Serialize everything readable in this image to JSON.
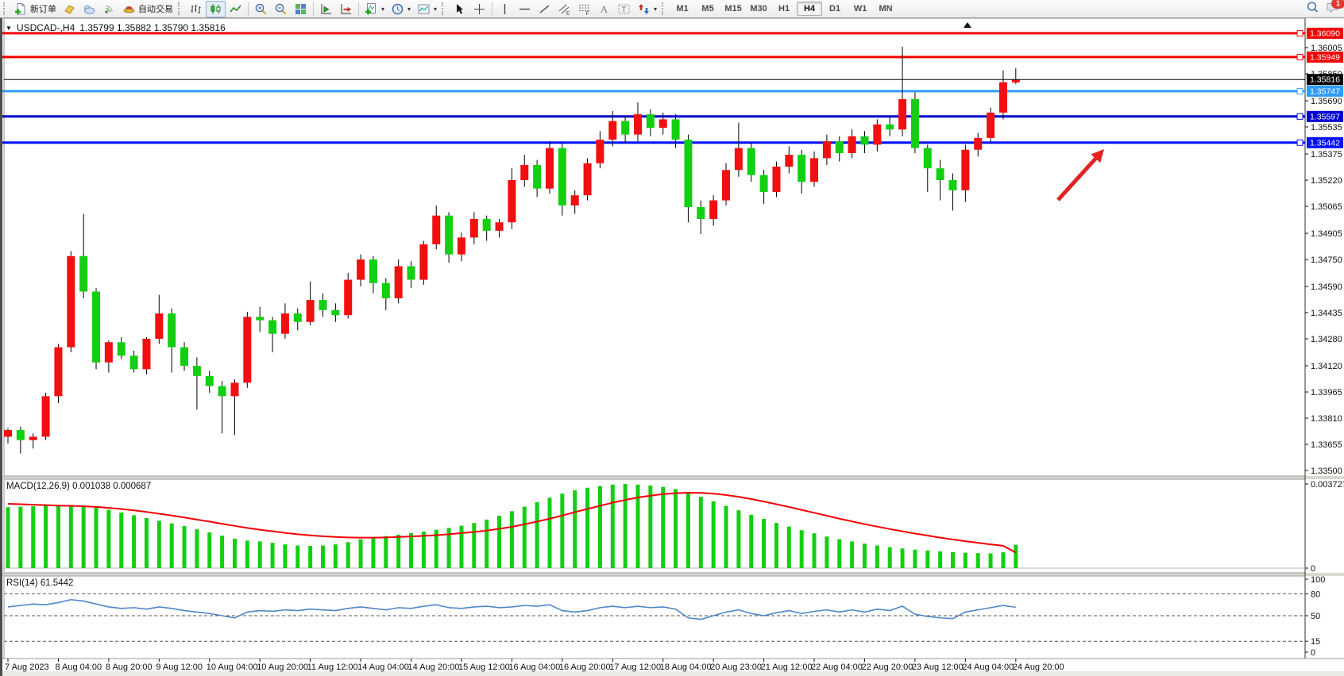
{
  "window": {
    "badge_count": "1"
  },
  "toolbar": {
    "new_order_label": "新订单",
    "auto_trading_label": "自动交易",
    "timeframes": [
      "M1",
      "M5",
      "M15",
      "M30",
      "H1",
      "H4",
      "D1",
      "W1",
      "MN"
    ],
    "active_timeframe": "H4",
    "icon_names": [
      "new-order-icon",
      "charts-icon",
      "market-icon",
      "signal-icon",
      "autotrading-icon",
      "bar-chart-icon",
      "candlestick-icon",
      "line-chart-icon",
      "zoom-in-icon",
      "zoom-out-icon",
      "tile-windows-icon",
      "auto-scroll-icon",
      "chart-shift-icon",
      "indicators-icon",
      "periods-icon",
      "templates-icon",
      "cursor-icon",
      "crosshair-icon",
      "vertical-line-icon",
      "horizontal-line-icon",
      "trendline-icon",
      "channel-icon",
      "fibonacci-icon",
      "text-icon",
      "text-label-icon",
      "arrows-icon",
      "search-icon",
      "chat-icon"
    ]
  },
  "chart": {
    "title_symbol": "USDCAD-,H4",
    "title_ohlc": "1.35799 1.35882 1.35790 1.35816",
    "macd_label": "MACD(12,26,9) 0.001038 0.000687",
    "rsi_label": "RSI(14) 61.5442",
    "price_ticks": [
      "1.36005",
      "1.35850",
      "1.35690",
      "1.35535",
      "1.35375",
      "1.35220",
      "1.35065",
      "1.34905",
      "1.34750",
      "1.34590",
      "1.34435",
      "1.34280",
      "1.34120",
      "1.33965",
      "1.33810",
      "1.33655",
      "1.33500"
    ],
    "macd_ticks": [
      "0.003727",
      "0"
    ],
    "rsi_ticks": [
      "100",
      "80",
      "50",
      "15",
      "0"
    ],
    "rsi_levels": [
      80,
      50,
      15
    ],
    "lines": [
      {
        "label": "1.36090",
        "value": 1.3609,
        "color": "#f40000"
      },
      {
        "label": "1.35949",
        "value": 1.35949,
        "color": "#f40000"
      },
      {
        "label": "1.35747",
        "value": 1.35747,
        "color": "#2f9bff"
      },
      {
        "label": "1.35597",
        "value": 1.35597,
        "color": "#0000d0"
      },
      {
        "label": "1.35442",
        "value": 1.35442,
        "color": "#0010ff"
      }
    ],
    "bid": {
      "label": "1.35816",
      "value": 1.35816,
      "color": "#000000"
    },
    "x_labels": [
      "7 Aug 2023",
      "8 Aug 04:00",
      "8 Aug 20:00",
      "9 Aug 12:00",
      "10 Aug 04:00",
      "10 Aug 20:00",
      "11 Aug 12:00",
      "14 Aug 04:00",
      "14 Aug 20:00",
      "15 Aug 12:00",
      "16 Aug 04:00",
      "16 Aug 20:00",
      "17 Aug 12:00",
      "18 Aug 04:00",
      "20 Aug 23:00",
      "21 Aug 12:00",
      "22 Aug 04:00",
      "22 Aug 20:00",
      "23 Aug 12:00",
      "24 Aug 04:00",
      "24 Aug 20:00"
    ],
    "colors": {
      "bull": "#f10f0f",
      "bear": "#12cf12",
      "wick": "#000000",
      "macd_hist": "#12cf12",
      "macd_signal": "#f40000",
      "rsi_line": "#4f86c6",
      "annotation": "#e12222"
    },
    "annotations": [
      {
        "type": "arrow",
        "from": [
          1332,
          252
        ],
        "to": [
          1390,
          188
        ]
      }
    ]
  },
  "chart_data": {
    "type": "candlestick",
    "symbol": "USDCAD",
    "period": "H4",
    "title": "USDCAD-,H4 1.35799 1.35882 1.35790 1.35816",
    "ylim": [
      1.335,
      1.3609
    ],
    "candles": [
      [
        1.337,
        1.3375,
        1.3366,
        1.3374
      ],
      [
        1.3374,
        1.3376,
        1.336,
        1.3368
      ],
      [
        1.3368,
        1.3372,
        1.3363,
        1.337
      ],
      [
        1.337,
        1.3396,
        1.3368,
        1.3394
      ],
      [
        1.3394,
        1.3425,
        1.339,
        1.3423
      ],
      [
        1.3423,
        1.348,
        1.342,
        1.3477
      ],
      [
        1.3477,
        1.3502,
        1.3452,
        1.3456
      ],
      [
        1.3456,
        1.3458,
        1.341,
        1.3414
      ],
      [
        1.3414,
        1.3427,
        1.3408,
        1.3426
      ],
      [
        1.3426,
        1.3429,
        1.3416,
        1.3418
      ],
      [
        1.3418,
        1.3421,
        1.3408,
        1.341
      ],
      [
        1.341,
        1.3429,
        1.3407,
        1.3428
      ],
      [
        1.3428,
        1.3454,
        1.3425,
        1.3443
      ],
      [
        1.3443,
        1.3446,
        1.3408,
        1.3423
      ],
      [
        1.3423,
        1.3426,
        1.3409,
        1.3412
      ],
      [
        1.3412,
        1.3417,
        1.3386,
        1.3406
      ],
      [
        1.3406,
        1.3409,
        1.3396,
        1.34
      ],
      [
        1.34,
        1.3403,
        1.3372,
        1.3394
      ],
      [
        1.3394,
        1.3404,
        1.3371,
        1.3402
      ],
      [
        1.3402,
        1.3444,
        1.3399,
        1.3441
      ],
      [
        1.3441,
        1.3447,
        1.3432,
        1.3439
      ],
      [
        1.3439,
        1.3441,
        1.342,
        1.3431
      ],
      [
        1.3431,
        1.3449,
        1.3428,
        1.3443
      ],
      [
        1.3443,
        1.3446,
        1.3433,
        1.3438
      ],
      [
        1.3438,
        1.3462,
        1.3436,
        1.3451
      ],
      [
        1.3451,
        1.3455,
        1.3441,
        1.3445
      ],
      [
        1.3445,
        1.3449,
        1.3438,
        1.3442
      ],
      [
        1.3442,
        1.3467,
        1.344,
        1.3463
      ],
      [
        1.3463,
        1.3478,
        1.3459,
        1.3475
      ],
      [
        1.3475,
        1.3477,
        1.3455,
        1.3461
      ],
      [
        1.3461,
        1.3464,
        1.3445,
        1.3452
      ],
      [
        1.3452,
        1.3475,
        1.3449,
        1.3471
      ],
      [
        1.3471,
        1.3474,
        1.3458,
        1.3463
      ],
      [
        1.3463,
        1.3486,
        1.346,
        1.3484
      ],
      [
        1.3484,
        1.3507,
        1.3481,
        1.3501
      ],
      [
        1.3501,
        1.3503,
        1.3473,
        1.3478
      ],
      [
        1.3478,
        1.3491,
        1.3474,
        1.3488
      ],
      [
        1.3488,
        1.3503,
        1.3484,
        1.3499
      ],
      [
        1.3499,
        1.3501,
        1.3486,
        1.3492
      ],
      [
        1.3492,
        1.3499,
        1.3488,
        1.3497
      ],
      [
        1.3497,
        1.3529,
        1.3493,
        1.3522
      ],
      [
        1.3522,
        1.3537,
        1.3518,
        1.3531
      ],
      [
        1.3531,
        1.3534,
        1.3512,
        1.3517
      ],
      [
        1.3517,
        1.3545,
        1.3514,
        1.3541
      ],
      [
        1.3541,
        1.3544,
        1.3501,
        1.3507
      ],
      [
        1.3507,
        1.3516,
        1.3502,
        1.3513
      ],
      [
        1.3513,
        1.3535,
        1.351,
        1.3532
      ],
      [
        1.3532,
        1.3551,
        1.3529,
        1.3546
      ],
      [
        1.3546,
        1.3563,
        1.3542,
        1.3557
      ],
      [
        1.3557,
        1.356,
        1.3544,
        1.3549
      ],
      [
        1.3549,
        1.3568,
        1.3545,
        1.3561
      ],
      [
        1.3561,
        1.3564,
        1.3548,
        1.3553
      ],
      [
        1.3553,
        1.3562,
        1.3549,
        1.3558
      ],
      [
        1.3558,
        1.3561,
        1.3541,
        1.3546
      ],
      [
        1.3546,
        1.3549,
        1.3497,
        1.3506
      ],
      [
        1.3506,
        1.351,
        1.349,
        1.3499
      ],
      [
        1.3499,
        1.3513,
        1.3495,
        1.351
      ],
      [
        1.351,
        1.3532,
        1.3507,
        1.3528
      ],
      [
        1.3528,
        1.3556,
        1.3524,
        1.3541
      ],
      [
        1.3541,
        1.3544,
        1.3521,
        1.3525
      ],
      [
        1.3525,
        1.3528,
        1.3508,
        1.3515
      ],
      [
        1.3515,
        1.3533,
        1.3512,
        1.353
      ],
      [
        1.353,
        1.3542,
        1.3526,
        1.3537
      ],
      [
        1.3537,
        1.354,
        1.3514,
        1.3521
      ],
      [
        1.3521,
        1.3539,
        1.3518,
        1.3535
      ],
      [
        1.3535,
        1.3549,
        1.3531,
        1.3545
      ],
      [
        1.3545,
        1.3548,
        1.3533,
        1.3538
      ],
      [
        1.3538,
        1.3552,
        1.3535,
        1.3548
      ],
      [
        1.3548,
        1.3551,
        1.3538,
        1.3543
      ],
      [
        1.3543,
        1.3558,
        1.3539,
        1.3555
      ],
      [
        1.3555,
        1.356,
        1.3548,
        1.3552
      ],
      [
        1.3552,
        1.3601,
        1.3548,
        1.357
      ],
      [
        1.357,
        1.3574,
        1.3538,
        1.3541
      ],
      [
        1.3541,
        1.3543,
        1.3515,
        1.3529
      ],
      [
        1.3529,
        1.3534,
        1.351,
        1.3522
      ],
      [
        1.3522,
        1.3526,
        1.3504,
        1.3516
      ],
      [
        1.3516,
        1.3543,
        1.3509,
        1.354
      ],
      [
        1.354,
        1.355,
        1.3536,
        1.3547
      ],
      [
        1.3547,
        1.3565,
        1.3544,
        1.3562
      ],
      [
        1.3562,
        1.3587,
        1.3558,
        1.358
      ],
      [
        1.35799,
        1.35882,
        1.3579,
        1.35816
      ]
    ],
    "macd": {
      "histogram": [
        0.0027,
        0.00272,
        0.00274,
        0.00276,
        0.00278,
        0.0028,
        0.00276,
        0.00268,
        0.00258,
        0.00246,
        0.00234,
        0.00222,
        0.0021,
        0.00198,
        0.00186,
        0.00172,
        0.00158,
        0.00144,
        0.0013,
        0.00122,
        0.00118,
        0.00112,
        0.00105,
        0.001,
        0.00098,
        0.001,
        0.00105,
        0.00115,
        0.00128,
        0.00138,
        0.00142,
        0.00148,
        0.00155,
        0.00162,
        0.0017,
        0.00178,
        0.00188,
        0.002,
        0.00215,
        0.00232,
        0.00252,
        0.00272,
        0.00292,
        0.00312,
        0.0033,
        0.00345,
        0.00356,
        0.00364,
        0.0037,
        0.003727,
        0.0037,
        0.00366,
        0.0036,
        0.0035,
        0.00335,
        0.00316,
        0.00296,
        0.00276,
        0.00256,
        0.00236,
        0.00218,
        0.002,
        0.00184,
        0.00168,
        0.00154,
        0.0014,
        0.00128,
        0.00118,
        0.00108,
        0.001,
        0.00093,
        0.00087,
        0.00082,
        0.00078,
        0.00074,
        0.00071,
        0.00068,
        0.00066,
        0.00065,
        0.0007,
        0.001038
      ],
      "signal": [
        0.00285,
        0.00283,
        0.00281,
        0.00279,
        0.00277,
        0.00276,
        0.00274,
        0.00271,
        0.00267,
        0.00262,
        0.00256,
        0.00249,
        0.00241,
        0.00233,
        0.00224,
        0.00215,
        0.00206,
        0.00196,
        0.00187,
        0.00178,
        0.0017,
        0.00163,
        0.00156,
        0.0015,
        0.00145,
        0.00141,
        0.00138,
        0.00136,
        0.00135,
        0.00135,
        0.00136,
        0.00138,
        0.0014,
        0.00143,
        0.00146,
        0.0015,
        0.00155,
        0.0016,
        0.00166,
        0.00174,
        0.00183,
        0.00194,
        0.00206,
        0.00219,
        0.00233,
        0.00248,
        0.00262,
        0.00276,
        0.0029,
        0.00302,
        0.00313,
        0.00321,
        0.00328,
        0.00332,
        0.00334,
        0.00333,
        0.0033,
        0.00324,
        0.00316,
        0.00306,
        0.00295,
        0.00283,
        0.00271,
        0.00258,
        0.00245,
        0.00232,
        0.00219,
        0.00207,
        0.00195,
        0.00184,
        0.00173,
        0.00163,
        0.00153,
        0.00144,
        0.00135,
        0.00127,
        0.00119,
        0.00112,
        0.00105,
        0.00099,
        0.000687
      ]
    },
    "rsi": [
      62,
      64,
      66,
      65,
      68,
      72,
      70,
      66,
      62,
      60,
      61,
      59,
      62,
      60,
      57,
      55,
      53,
      50,
      47,
      55,
      57,
      56,
      58,
      57,
      59,
      58,
      57,
      60,
      62,
      60,
      58,
      61,
      60,
      63,
      65,
      61,
      60,
      62,
      63,
      61,
      62,
      64,
      63,
      65,
      57,
      55,
      57,
      61,
      63,
      61,
      63,
      61,
      62,
      59,
      47,
      45,
      50,
      55,
      58,
      53,
      50,
      54,
      57,
      53,
      56,
      58,
      55,
      58,
      55,
      59,
      57,
      63,
      52,
      49,
      47,
      46,
      55,
      58,
      61,
      64,
      61.5442
    ]
  }
}
